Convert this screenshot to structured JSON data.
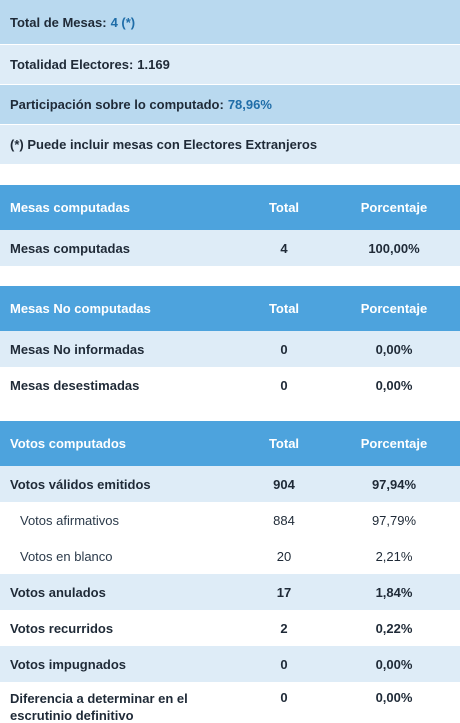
{
  "summary": {
    "total_mesas_label": "Total de Mesas:",
    "total_mesas_value": "4 (*)",
    "totalidad_electores_label": "Totalidad Electores:",
    "totalidad_electores_value": "1.169",
    "participacion_label": "Participación sobre lo computado:",
    "participacion_value": "78,96%",
    "nota": "(*) Puede incluir mesas con Electores Extranjeros"
  },
  "tables": {
    "computadas": {
      "headers": [
        "Mesas computadas",
        "Total",
        "Porcentaje"
      ],
      "rows": [
        [
          "Mesas computadas",
          "4",
          "100,00%"
        ]
      ]
    },
    "no_computadas": {
      "headers": [
        "Mesas No computadas",
        "Total",
        "Porcentaje"
      ],
      "rows": [
        [
          "Mesas No informadas",
          "0",
          "0,00%"
        ],
        [
          "Mesas desestimadas",
          "0",
          "0,00%"
        ]
      ]
    },
    "votos": {
      "headers": [
        "Votos computados",
        "Total",
        "Porcentaje"
      ],
      "rows": [
        [
          "Votos válidos emitidos",
          "904",
          "97,94%"
        ],
        [
          "Votos afirmativos",
          "884",
          "97,79%"
        ],
        [
          "Votos en blanco",
          "20",
          "2,21%"
        ],
        [
          "Votos anulados",
          "17",
          "1,84%"
        ],
        [
          "Votos recurridos",
          "2",
          "0,22%"
        ],
        [
          "Votos impugnados",
          "0",
          "0,00%"
        ],
        [
          "Diferencia a determinar en el escrutinio definitivo",
          "0",
          "0,00%"
        ]
      ]
    }
  },
  "colors": {
    "header_bg": "#4da3dd",
    "shade_row": "#deecf7",
    "summary_dark": "#b9d9ef",
    "value_blue": "#1f6da8"
  }
}
